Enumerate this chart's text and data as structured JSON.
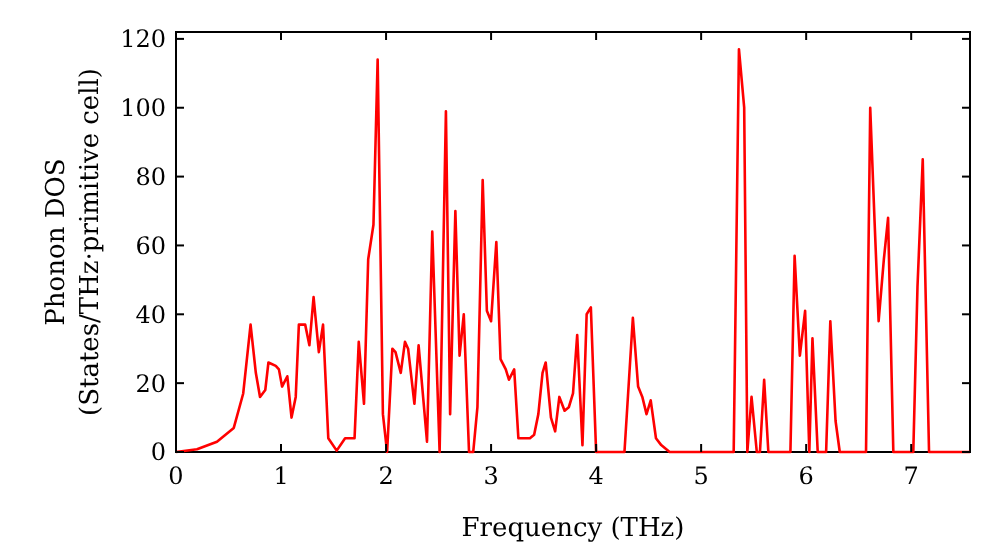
{
  "chart_data": {
    "type": "line",
    "xlabel": "Frequency (THz)",
    "ylabel": "Phonon DOS\n(States/THz·primitive cell)",
    "xlim": [
      0,
      7.56
    ],
    "ylim": [
      0,
      122
    ],
    "xticks": [
      0,
      1,
      2,
      3,
      4,
      5,
      6,
      7
    ],
    "yticks": [
      0,
      20,
      40,
      60,
      80,
      100,
      120
    ],
    "grid": false,
    "marker": "none",
    "line_style": "solid",
    "series": [
      {
        "color": "#ff0000",
        "x": [
          0,
          0.2,
          0.39,
          0.55,
          0.64,
          0.71,
          0.76,
          0.8,
          0.85,
          0.88,
          0.95,
          0.98,
          1.01,
          1.06,
          1.1,
          1.14,
          1.17,
          1.23,
          1.27,
          1.31,
          1.36,
          1.4,
          1.45,
          1.53,
          1.61,
          1.7,
          1.74,
          1.79,
          1.83,
          1.88,
          1.92,
          1.97,
          2.01,
          2.06,
          2.09,
          2.14,
          2.18,
          2.21,
          2.27,
          2.31,
          2.39,
          2.44,
          2.51,
          2.57,
          2.61,
          2.66,
          2.7,
          2.74,
          2.79,
          2.83,
          2.87,
          2.92,
          2.96,
          3,
          3.05,
          3.09,
          3.14,
          3.17,
          3.22,
          3.26,
          3.37,
          3.41,
          3.45,
          3.49,
          3.52,
          3.57,
          3.61,
          3.65,
          3.7,
          3.74,
          3.78,
          3.82,
          3.87,
          3.91,
          3.95,
          4,
          4.27,
          4.35,
          4.4,
          4.44,
          4.48,
          4.52,
          4.57,
          4.62,
          4.7,
          5.1,
          5.31,
          5.36,
          5.41,
          5.44,
          5.48,
          5.53,
          5.56,
          5.6,
          5.64,
          5.85,
          5.89,
          5.94,
          5.99,
          6.03,
          6.06,
          6.11,
          6.19,
          6.23,
          6.28,
          6.32,
          6.57,
          6.61,
          6.65,
          6.69,
          6.74,
          6.78,
          6.83,
          7.02,
          7.06,
          7.11,
          7.17,
          7.56
        ],
        "values": [
          0,
          0.8,
          3,
          7,
          17,
          37,
          23,
          16,
          18,
          26,
          25,
          24,
          19,
          22,
          10,
          16,
          37,
          37,
          31,
          45,
          29,
          37,
          4,
          0.4,
          4,
          4,
          32,
          14,
          56,
          66,
          114,
          11,
          0,
          30,
          29,
          23,
          32,
          30,
          14,
          31,
          3,
          64,
          0,
          99,
          11,
          70,
          28,
          40,
          0,
          0,
          13,
          79,
          41,
          38,
          61,
          27,
          24,
          21,
          24,
          4,
          4,
          5,
          11,
          23,
          26,
          10,
          6,
          16,
          12,
          13,
          17,
          34,
          2,
          40,
          42,
          0,
          0,
          39,
          19,
          16,
          11,
          15,
          4,
          2,
          0,
          0,
          0,
          117,
          100,
          0,
          16,
          0,
          0,
          21,
          0,
          0,
          57,
          28,
          41,
          0,
          33,
          0,
          0,
          38,
          9,
          0,
          0,
          100,
          68,
          38,
          56,
          68,
          0,
          0,
          48,
          85,
          0,
          0
        ]
      }
    ]
  }
}
